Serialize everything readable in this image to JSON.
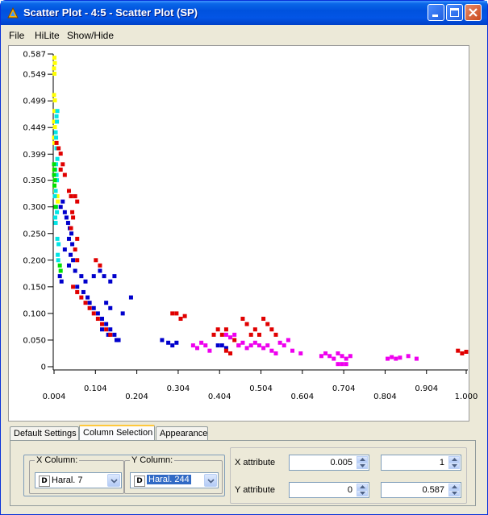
{
  "window": {
    "title": "Scatter Plot - 4:5 - Scatter Plot (SP)"
  },
  "menu": [
    "File",
    "HiLite",
    "Show/Hide"
  ],
  "tabs": [
    {
      "label": "Default Settings",
      "active": false
    },
    {
      "label": "Column Selection",
      "active": true
    },
    {
      "label": "Appearance",
      "active": false
    }
  ],
  "column_selection": {
    "x_column_label": "X Column:",
    "x_column_value": "Haral. 7",
    "x_column_type": "D",
    "y_column_label": "Y Column:",
    "y_column_value": "Haral. 244",
    "y_column_type": "D",
    "x_attribute_label": "X attribute",
    "x_min": "0.005",
    "x_max": "1",
    "y_attribute_label": "Y attribute",
    "y_min": "0",
    "y_max": "0.587"
  },
  "chart_data": {
    "type": "scatter",
    "title": "",
    "xlabel": "",
    "ylabel": "",
    "xlim": [
      0.004,
      1.0
    ],
    "ylim": [
      0,
      0.587
    ],
    "x_ticks_upper": [
      "0.104",
      "0.304",
      "0.504",
      "0.704",
      "0.904"
    ],
    "x_ticks_lower": [
      "0.004",
      "0.204",
      "0.404",
      "0.604",
      "0.804",
      "1.000"
    ],
    "y_ticks": [
      "0",
      "0.050",
      "0.100",
      "0.150",
      "0.200",
      "0.250",
      "0.300",
      "0.350",
      "0.399",
      "0.449",
      "0.499",
      "0.549",
      "0.587"
    ],
    "grid": false,
    "series": [
      {
        "color": "#ffff00",
        "points": [
          [
            0.005,
            0.58
          ],
          [
            0.006,
            0.57
          ],
          [
            0.004,
            0.56
          ],
          [
            0.005,
            0.55
          ],
          [
            0.004,
            0.51
          ],
          [
            0.006,
            0.5
          ],
          [
            0.005,
            0.48
          ],
          [
            0.004,
            0.46
          ],
          [
            0.006,
            0.45
          ],
          [
            0.004,
            0.43
          ],
          [
            0.005,
            0.42
          ],
          [
            0.007,
            0.33
          ],
          [
            0.01,
            0.32
          ],
          [
            0.012,
            0.32
          ],
          [
            0.006,
            0.35
          ],
          [
            0.004,
            0.37
          ],
          [
            0.005,
            0.34
          ],
          [
            0.013,
            0.31
          ]
        ]
      },
      {
        "color": "#00e5e5",
        "points": [
          [
            0.012,
            0.48
          ],
          [
            0.01,
            0.47
          ],
          [
            0.011,
            0.46
          ],
          [
            0.008,
            0.44
          ],
          [
            0.009,
            0.43
          ],
          [
            0.01,
            0.41
          ],
          [
            0.012,
            0.39
          ],
          [
            0.009,
            0.38
          ],
          [
            0.007,
            0.37
          ],
          [
            0.01,
            0.36
          ],
          [
            0.011,
            0.35
          ],
          [
            0.008,
            0.33
          ],
          [
            0.006,
            0.32
          ],
          [
            0.009,
            0.3
          ],
          [
            0.011,
            0.29
          ],
          [
            0.007,
            0.28
          ],
          [
            0.008,
            0.27
          ],
          [
            0.012,
            0.24
          ],
          [
            0.015,
            0.23
          ],
          [
            0.013,
            0.21
          ],
          [
            0.014,
            0.2
          ]
        ]
      },
      {
        "color": "#00e000",
        "points": [
          [
            0.004,
            0.38
          ],
          [
            0.005,
            0.37
          ],
          [
            0.004,
            0.36
          ],
          [
            0.006,
            0.35
          ],
          [
            0.005,
            0.34
          ],
          [
            0.008,
            0.3
          ],
          [
            0.018,
            0.19
          ],
          [
            0.02,
            0.18
          ]
        ]
      },
      {
        "color": "#0000cc",
        "points": [
          [
            0.02,
            0.3
          ],
          [
            0.025,
            0.31
          ],
          [
            0.03,
            0.29
          ],
          [
            0.034,
            0.28
          ],
          [
            0.038,
            0.27
          ],
          [
            0.042,
            0.26
          ],
          [
            0.046,
            0.25
          ],
          [
            0.04,
            0.24
          ],
          [
            0.048,
            0.23
          ],
          [
            0.03,
            0.22
          ],
          [
            0.044,
            0.21
          ],
          [
            0.05,
            0.2
          ],
          [
            0.018,
            0.17
          ],
          [
            0.022,
            0.16
          ],
          [
            0.04,
            0.19
          ],
          [
            0.055,
            0.18
          ],
          [
            0.07,
            0.17
          ],
          [
            0.08,
            0.16
          ],
          [
            0.06,
            0.15
          ],
          [
            0.075,
            0.14
          ],
          [
            0.085,
            0.13
          ],
          [
            0.09,
            0.12
          ],
          [
            0.1,
            0.11
          ],
          [
            0.11,
            0.1
          ],
          [
            0.12,
            0.09
          ],
          [
            0.13,
            0.08
          ],
          [
            0.14,
            0.07
          ],
          [
            0.15,
            0.06
          ],
          [
            0.16,
            0.05
          ],
          [
            0.12,
            0.07
          ],
          [
            0.155,
            0.05
          ],
          [
            0.135,
            0.06
          ],
          [
            0.1,
            0.17
          ],
          [
            0.115,
            0.18
          ],
          [
            0.125,
            0.17
          ],
          [
            0.14,
            0.16
          ],
          [
            0.15,
            0.17
          ],
          [
            0.13,
            0.12
          ],
          [
            0.14,
            0.11
          ],
          [
            0.17,
            0.1
          ],
          [
            0.19,
            0.13
          ],
          [
            0.265,
            0.05
          ],
          [
            0.28,
            0.045
          ],
          [
            0.29,
            0.04
          ],
          [
            0.3,
            0.045
          ],
          [
            0.4,
            0.04
          ],
          [
            0.41,
            0.04
          ],
          [
            0.42,
            0.035
          ]
        ]
      },
      {
        "color": "#e00000",
        "points": [
          [
            0.01,
            0.42
          ],
          [
            0.015,
            0.41
          ],
          [
            0.02,
            0.4
          ],
          [
            0.025,
            0.38
          ],
          [
            0.02,
            0.37
          ],
          [
            0.03,
            0.36
          ],
          [
            0.04,
            0.33
          ],
          [
            0.045,
            0.32
          ],
          [
            0.055,
            0.32
          ],
          [
            0.06,
            0.31
          ],
          [
            0.048,
            0.29
          ],
          [
            0.05,
            0.28
          ],
          [
            0.045,
            0.26
          ],
          [
            0.06,
            0.24
          ],
          [
            0.055,
            0.22
          ],
          [
            0.06,
            0.2
          ],
          [
            0.05,
            0.15
          ],
          [
            0.06,
            0.14
          ],
          [
            0.07,
            0.13
          ],
          [
            0.08,
            0.12
          ],
          [
            0.09,
            0.11
          ],
          [
            0.1,
            0.1
          ],
          [
            0.11,
            0.09
          ],
          [
            0.12,
            0.08
          ],
          [
            0.13,
            0.07
          ],
          [
            0.14,
            0.06
          ],
          [
            0.105,
            0.2
          ],
          [
            0.115,
            0.19
          ],
          [
            0.29,
            0.1
          ],
          [
            0.3,
            0.1
          ],
          [
            0.31,
            0.09
          ],
          [
            0.32,
            0.095
          ],
          [
            0.39,
            0.06
          ],
          [
            0.4,
            0.07
          ],
          [
            0.41,
            0.06
          ],
          [
            0.42,
            0.07
          ],
          [
            0.44,
            0.05
          ],
          [
            0.45,
            0.04
          ],
          [
            0.46,
            0.09
          ],
          [
            0.47,
            0.08
          ],
          [
            0.48,
            0.06
          ],
          [
            0.49,
            0.07
          ],
          [
            0.5,
            0.06
          ],
          [
            0.51,
            0.09
          ],
          [
            0.52,
            0.08
          ],
          [
            0.53,
            0.07
          ],
          [
            0.54,
            0.06
          ],
          [
            0.42,
            0.03
          ],
          [
            0.43,
            0.025
          ],
          [
            0.98,
            0.03
          ],
          [
            0.99,
            0.025
          ],
          [
            1.0,
            0.028
          ]
        ]
      },
      {
        "color": "#ee00ee",
        "points": [
          [
            0.34,
            0.04
          ],
          [
            0.35,
            0.035
          ],
          [
            0.36,
            0.045
          ],
          [
            0.37,
            0.04
          ],
          [
            0.38,
            0.03
          ],
          [
            0.42,
            0.06
          ],
          [
            0.43,
            0.055
          ],
          [
            0.44,
            0.06
          ],
          [
            0.45,
            0.04
          ],
          [
            0.46,
            0.045
          ],
          [
            0.47,
            0.035
          ],
          [
            0.48,
            0.04
          ],
          [
            0.49,
            0.045
          ],
          [
            0.5,
            0.04
          ],
          [
            0.51,
            0.035
          ],
          [
            0.52,
            0.04
          ],
          [
            0.53,
            0.03
          ],
          [
            0.54,
            0.025
          ],
          [
            0.55,
            0.045
          ],
          [
            0.56,
            0.04
          ],
          [
            0.57,
            0.05
          ],
          [
            0.58,
            0.03
          ],
          [
            0.6,
            0.025
          ],
          [
            0.65,
            0.02
          ],
          [
            0.66,
            0.025
          ],
          [
            0.67,
            0.02
          ],
          [
            0.68,
            0.015
          ],
          [
            0.69,
            0.025
          ],
          [
            0.7,
            0.02
          ],
          [
            0.71,
            0.015
          ],
          [
            0.72,
            0.02
          ],
          [
            0.69,
            0.005
          ],
          [
            0.7,
            0.005
          ],
          [
            0.71,
            0.005
          ],
          [
            0.81,
            0.015
          ],
          [
            0.82,
            0.018
          ],
          [
            0.83,
            0.015
          ],
          [
            0.84,
            0.017
          ],
          [
            0.86,
            0.02
          ],
          [
            0.88,
            0.015
          ]
        ]
      }
    ]
  }
}
